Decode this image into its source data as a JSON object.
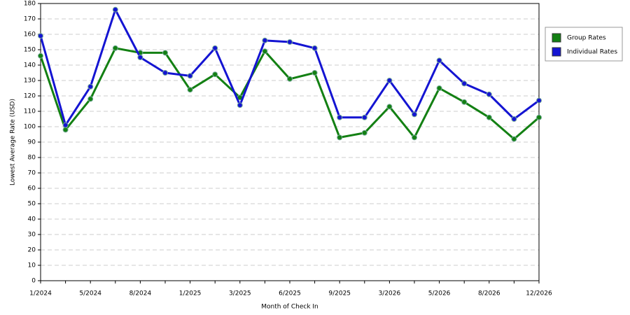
{
  "chart_data": {
    "type": "line",
    "x_label": "Month of Check In",
    "y_label": "Lowest Average Rate (USD)",
    "categories": [
      "1/2024",
      null,
      "5/2024",
      null,
      "8/2024",
      null,
      "1/2025",
      null,
      "3/2025",
      null,
      "6/2025",
      null,
      "9/2025",
      null,
      "3/2026",
      null,
      "5/2026",
      null,
      "8/2026",
      null,
      "12/2026"
    ],
    "series": [
      {
        "name": "Group Rates",
        "color": "#138013",
        "values": [
          146,
          98,
          118,
          151,
          148,
          148,
          124,
          134,
          119,
          149,
          131,
          135,
          93,
          96,
          113,
          93,
          125,
          116,
          106,
          92,
          106
        ]
      },
      {
        "name": "Individual Rates",
        "color": "#1414d2",
        "values": [
          159,
          101,
          126,
          176,
          145,
          135,
          133,
          151,
          114,
          156,
          155,
          151,
          106,
          106,
          130,
          108,
          143,
          128,
          121,
          105,
          117
        ]
      }
    ],
    "ylim": [
      0,
      180
    ],
    "yticks": [
      0,
      10,
      20,
      30,
      40,
      50,
      60,
      70,
      80,
      90,
      100,
      110,
      120,
      130,
      140,
      150,
      160,
      170,
      180
    ],
    "grid": true,
    "legend": "right"
  }
}
